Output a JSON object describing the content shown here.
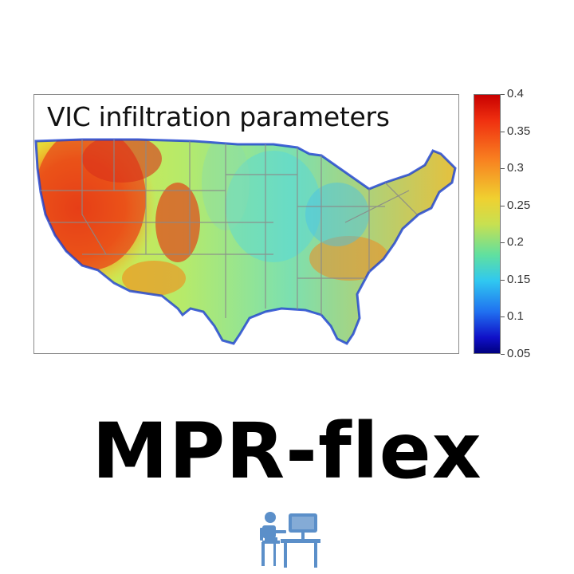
{
  "map": {
    "title": "VIC infiltration parameters",
    "colors": {
      "red": "#e02a10",
      "orange": "#f5a21a",
      "yellow": "#e8e83a",
      "green": "#9be48a",
      "cyan": "#3fd6e6",
      "blue": "#2050e0",
      "navy": "#0a0a8a",
      "border": "#8a8a8a"
    }
  },
  "colorbar": {
    "ticks": [
      "0.4",
      "0.35",
      "0.3",
      "0.25",
      "0.2",
      "0.15",
      "0.1",
      "0.05"
    ],
    "min": 0.05,
    "max": 0.4
  },
  "brand": {
    "name": "MPR-flex"
  },
  "icon": {
    "name": "person-at-computer-icon",
    "color": "#5b8fc9"
  }
}
